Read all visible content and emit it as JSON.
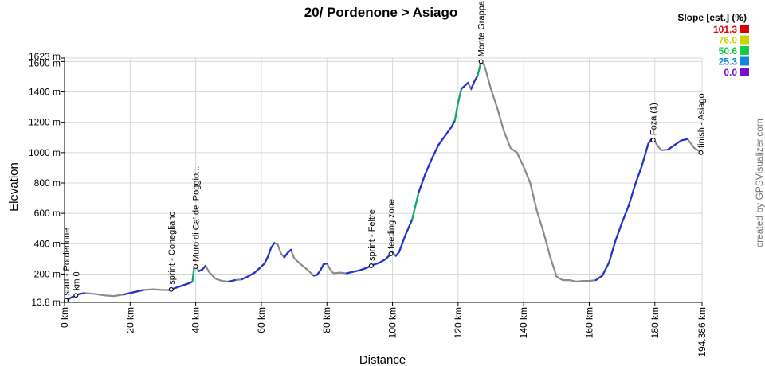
{
  "chart_data": {
    "type": "line",
    "title": "20/ Pordenone > Asiago",
    "xlabel": "Distance",
    "ylabel": "Elevation",
    "xlim": [
      0,
      194.386
    ],
    "ylim": [
      13.8,
      1623
    ],
    "x_ticks": [
      {
        "value": 0,
        "label": "0 km"
      },
      {
        "value": 20,
        "label": "20 km"
      },
      {
        "value": 40,
        "label": "40 km"
      },
      {
        "value": 60,
        "label": "60 km"
      },
      {
        "value": 80,
        "label": "80 km"
      },
      {
        "value": 100,
        "label": "100 km"
      },
      {
        "value": 120,
        "label": "120 km"
      },
      {
        "value": 140,
        "label": "140 km"
      },
      {
        "value": 160,
        "label": "160 km"
      },
      {
        "value": 180,
        "label": "180 km"
      },
      {
        "value": 194.386,
        "label": "194.386 km"
      }
    ],
    "y_ticks": [
      {
        "value": 13.8,
        "label": "13.8 m"
      },
      {
        "value": 200,
        "label": "200 m"
      },
      {
        "value": 400,
        "label": "400 m"
      },
      {
        "value": 600,
        "label": "600 m"
      },
      {
        "value": 800,
        "label": "800 m"
      },
      {
        "value": 1000,
        "label": "1000 m"
      },
      {
        "value": 1200,
        "label": "1200 m"
      },
      {
        "value": 1400,
        "label": "1400 m"
      },
      {
        "value": 1600,
        "label": "1600 m"
      },
      {
        "value": 1623,
        "label": "1623 m"
      }
    ],
    "grid": true,
    "legend_position": "top-right",
    "legend": {
      "title": "Slope [est.] (%)",
      "entries": [
        {
          "label": "101.3",
          "color": "#dd0000"
        },
        {
          "label": "76.0",
          "color": "#c8d400"
        },
        {
          "label": "50.6",
          "color": "#11cc44"
        },
        {
          "label": "25.3",
          "color": "#1188dd"
        },
        {
          "label": "0.0",
          "color": "#7711cc"
        }
      ]
    },
    "segment_colors": {
      "climb": "#2233cc",
      "descent": "#888888",
      "steep": "#11aa66"
    },
    "profile": {
      "x": [
        0,
        2,
        4,
        6,
        9,
        12,
        15,
        18,
        21,
        24,
        27,
        30,
        32,
        34,
        36,
        38,
        39,
        39.5,
        40,
        41,
        42,
        43,
        44,
        46,
        48,
        50,
        52,
        54,
        56,
        58,
        60,
        61,
        62,
        63,
        64,
        65,
        66,
        67,
        68,
        69,
        70,
        72,
        74,
        76,
        77,
        78,
        79,
        80,
        81,
        82,
        84,
        86,
        88,
        90,
        92,
        94,
        96,
        98,
        100,
        101,
        102,
        104,
        106,
        108,
        110,
        112,
        114,
        116,
        118,
        119,
        120,
        121,
        122,
        123,
        124,
        125,
        126,
        127,
        128,
        129,
        130,
        132,
        134,
        136,
        138,
        140,
        142,
        144,
        146,
        148,
        150,
        151,
        152,
        154,
        156,
        158,
        160,
        162,
        164,
        166,
        168,
        170,
        172,
        174,
        176,
        178,
        179,
        180,
        181,
        182,
        184,
        186,
        188,
        190,
        192,
        194.386
      ],
      "y": [
        20,
        45,
        65,
        75,
        70,
        60,
        55,
        65,
        80,
        95,
        100,
        95,
        95,
        110,
        125,
        140,
        150,
        240,
        250,
        220,
        230,
        255,
        215,
        170,
        155,
        150,
        160,
        165,
        185,
        210,
        250,
        270,
        315,
        375,
        405,
        395,
        335,
        310,
        340,
        360,
        305,
        265,
        230,
        190,
        195,
        225,
        265,
        270,
        230,
        205,
        210,
        205,
        215,
        225,
        240,
        260,
        275,
        300,
        345,
        320,
        345,
        460,
        560,
        740,
        860,
        960,
        1050,
        1110,
        1170,
        1210,
        1330,
        1420,
        1440,
        1460,
        1420,
        1470,
        1510,
        1600,
        1575,
        1500,
        1420,
        1290,
        1140,
        1030,
        1000,
        905,
        800,
        620,
        480,
        320,
        185,
        170,
        160,
        160,
        150,
        155,
        155,
        160,
        190,
        275,
        420,
        540,
        650,
        790,
        910,
        1060,
        1090,
        1075,
        1040,
        1015,
        1020,
        1050,
        1080,
        1090,
        1030,
        1000
      ]
    },
    "waypoints": [
      {
        "x": 0.5,
        "label": "start - Pordenone"
      },
      {
        "x": 3.5,
        "label": "km 0"
      },
      {
        "x": 32.5,
        "label": "sprint - Conegliano"
      },
      {
        "x": 40,
        "label": "Muro di Ca' del Poggio..."
      },
      {
        "x": 93.5,
        "label": "sprint - Feltre"
      },
      {
        "x": 99.5,
        "label": "feeding zone"
      },
      {
        "x": 127,
        "label": "Monte Grappa"
      },
      {
        "x": 179.5,
        "label": "Foza (1)"
      },
      {
        "x": 194.386,
        "label": "finish - Asiago"
      }
    ],
    "credit": "created by GPSVisualizer.com"
  }
}
